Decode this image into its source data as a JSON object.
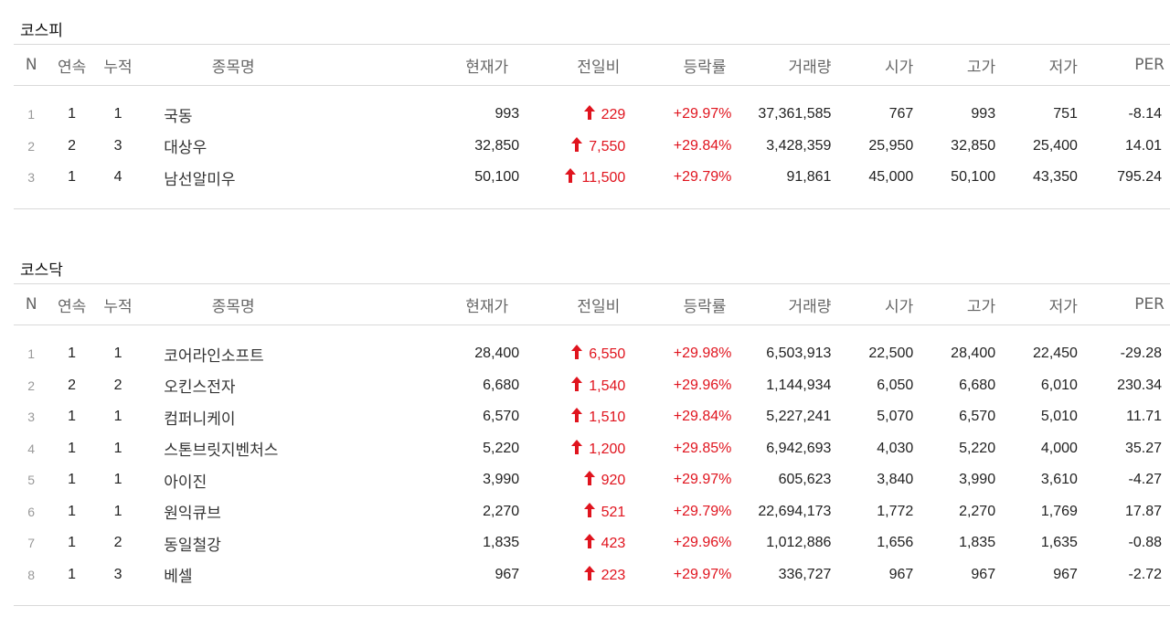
{
  "colors": {
    "up": "#e0141e",
    "border": "#d9d9d9"
  },
  "icons": {
    "change_up": "up-arrow-icon"
  },
  "columns": {
    "n": "N",
    "consecutive": "연속",
    "cumulative": "누적",
    "name": "종목명",
    "price": "현재가",
    "change": "전일비",
    "rate": "등락률",
    "volume": "거래량",
    "open": "시가",
    "high": "고가",
    "low": "저가",
    "per": "PER"
  },
  "kospi": {
    "title": "코스피",
    "rows": [
      {
        "n": "1",
        "consecutive": "1",
        "cumulative": "1",
        "name": "국동",
        "price": "993",
        "change": "229",
        "rate": "+29.97%",
        "volume": "37,361,585",
        "open": "767",
        "high": "993",
        "low": "751",
        "per": "-8.14"
      },
      {
        "n": "2",
        "consecutive": "2",
        "cumulative": "3",
        "name": "대상우",
        "price": "32,850",
        "change": "7,550",
        "rate": "+29.84%",
        "volume": "3,428,359",
        "open": "25,950",
        "high": "32,850",
        "low": "25,400",
        "per": "14.01"
      },
      {
        "n": "3",
        "consecutive": "1",
        "cumulative": "4",
        "name": "남선알미우",
        "price": "50,100",
        "change": "11,500",
        "rate": "+29.79%",
        "volume": "91,861",
        "open": "45,000",
        "high": "50,100",
        "low": "43,350",
        "per": "795.24"
      }
    ]
  },
  "kosdaq": {
    "title": "코스닥",
    "rows": [
      {
        "n": "1",
        "consecutive": "1",
        "cumulative": "1",
        "name": "코어라인소프트",
        "price": "28,400",
        "change": "6,550",
        "rate": "+29.98%",
        "volume": "6,503,913",
        "open": "22,500",
        "high": "28,400",
        "low": "22,450",
        "per": "-29.28"
      },
      {
        "n": "2",
        "consecutive": "2",
        "cumulative": "2",
        "name": "오킨스전자",
        "price": "6,680",
        "change": "1,540",
        "rate": "+29.96%",
        "volume": "1,144,934",
        "open": "6,050",
        "high": "6,680",
        "low": "6,010",
        "per": "230.34"
      },
      {
        "n": "3",
        "consecutive": "1",
        "cumulative": "1",
        "name": "컴퍼니케이",
        "price": "6,570",
        "change": "1,510",
        "rate": "+29.84%",
        "volume": "5,227,241",
        "open": "5,070",
        "high": "6,570",
        "low": "5,010",
        "per": "11.71"
      },
      {
        "n": "4",
        "consecutive": "1",
        "cumulative": "1",
        "name": "스톤브릿지벤처스",
        "price": "5,220",
        "change": "1,200",
        "rate": "+29.85%",
        "volume": "6,942,693",
        "open": "4,030",
        "high": "5,220",
        "low": "4,000",
        "per": "35.27"
      },
      {
        "n": "5",
        "consecutive": "1",
        "cumulative": "1",
        "name": "아이진",
        "price": "3,990",
        "change": "920",
        "rate": "+29.97%",
        "volume": "605,623",
        "open": "3,840",
        "high": "3,990",
        "low": "3,610",
        "per": "-4.27"
      },
      {
        "n": "6",
        "consecutive": "1",
        "cumulative": "1",
        "name": "원익큐브",
        "price": "2,270",
        "change": "521",
        "rate": "+29.79%",
        "volume": "22,694,173",
        "open": "1,772",
        "high": "2,270",
        "low": "1,769",
        "per": "17.87"
      },
      {
        "n": "7",
        "consecutive": "1",
        "cumulative": "2",
        "name": "동일철강",
        "price": "1,835",
        "change": "423",
        "rate": "+29.96%",
        "volume": "1,012,886",
        "open": "1,656",
        "high": "1,835",
        "low": "1,635",
        "per": "-0.88"
      },
      {
        "n": "8",
        "consecutive": "1",
        "cumulative": "3",
        "name": "베셀",
        "price": "967",
        "change": "223",
        "rate": "+29.97%",
        "volume": "336,727",
        "open": "967",
        "high": "967",
        "low": "967",
        "per": "-2.72"
      }
    ]
  }
}
